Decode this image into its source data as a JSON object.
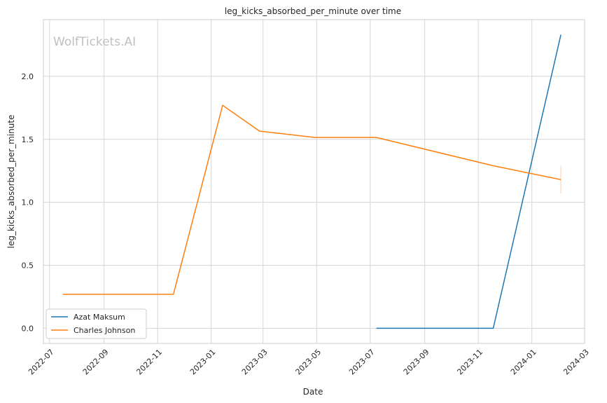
{
  "chart_data": {
    "type": "line",
    "title": "leg_kicks_absorbed_per_minute over time",
    "xlabel": "Date",
    "ylabel": "leg_kicks_absorbed_per_minute",
    "watermark": "WolfTickets.AI",
    "xlim": [
      "2022-06-24",
      "2024-03-01"
    ],
    "ylim": [
      -0.12,
      2.45
    ],
    "x_ticks": [
      "2022-07-01",
      "2022-09-01",
      "2022-11-01",
      "2023-01-01",
      "2023-03-01",
      "2023-05-01",
      "2023-07-01",
      "2023-09-01",
      "2023-11-01",
      "2024-01-01",
      "2024-03-01"
    ],
    "x_tick_labels": [
      "2022-07",
      "2022-09",
      "2022-11",
      "2023-01",
      "2023-03",
      "2023-05",
      "2023-07",
      "2023-09",
      "2023-11",
      "2024-01",
      "2024-03"
    ],
    "y_ticks": [
      0.0,
      0.5,
      1.0,
      1.5,
      2.0
    ],
    "y_tick_labels": [
      "0.0",
      "0.5",
      "1.0",
      "1.5",
      "2.0"
    ],
    "grid": true,
    "legend_position": "lower-left",
    "series": [
      {
        "name": "Azat Maksum",
        "color": "#1f77b4",
        "x": [
          "2023-07-08",
          "2023-11-18",
          "2024-02-03"
        ],
        "y": [
          0.0,
          0.0,
          2.33
        ]
      },
      {
        "name": "Charles Johnson",
        "color": "#ff7f0e",
        "x": [
          "2022-07-16",
          "2022-11-19",
          "2023-01-14",
          "2023-02-25",
          "2023-04-29",
          "2023-07-08",
          "2023-11-18",
          "2024-02-03"
        ],
        "y": [
          0.27,
          0.27,
          1.77,
          1.565,
          1.515,
          1.515,
          1.29,
          1.18
        ],
        "error_band": {
          "x": "2024-02-03",
          "low": 1.07,
          "high": 1.29
        }
      }
    ]
  }
}
